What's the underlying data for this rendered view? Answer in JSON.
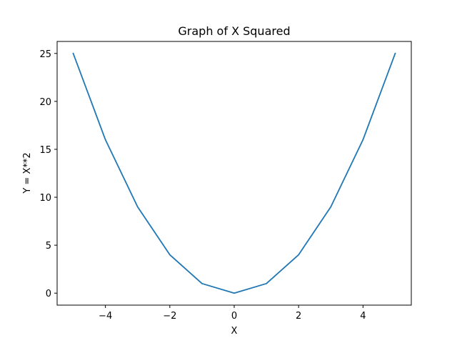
{
  "chart_data": {
    "type": "line",
    "title": "Graph of X Squared",
    "xlabel": "X",
    "ylabel": "Y = X**2",
    "x": [
      -5,
      -4,
      -3,
      -2,
      -1,
      0,
      1,
      2,
      3,
      4,
      5
    ],
    "series": [
      {
        "values": [
          25,
          16,
          9,
          4,
          1,
          0,
          1,
          4,
          9,
          16,
          25
        ],
        "color": "#1f77b4"
      }
    ],
    "xlim": [
      -5.5,
      5.5
    ],
    "ylim": [
      -1.25,
      26.25
    ],
    "xticks": [
      -4,
      -2,
      0,
      2,
      4
    ],
    "xtick_labels": [
      "−4",
      "−2",
      "0",
      "2",
      "4"
    ],
    "yticks": [
      0,
      5,
      10,
      15,
      20,
      25
    ],
    "ytick_labels": [
      "0",
      "5",
      "10",
      "15",
      "20",
      "25"
    ],
    "grid": false,
    "legend": false
  }
}
